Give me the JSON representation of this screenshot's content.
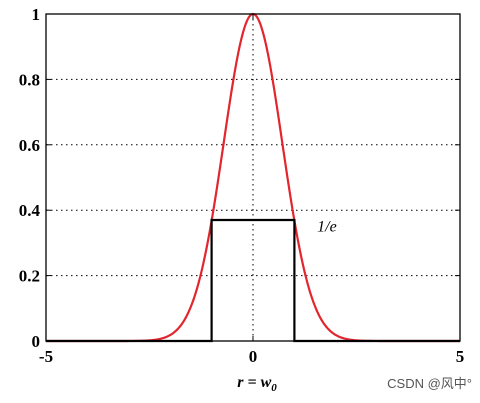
{
  "chart_data": {
    "type": "line",
    "xlim": [
      -5,
      5
    ],
    "ylim": [
      0,
      1
    ],
    "x_ticks": [
      -5,
      0,
      5
    ],
    "y_ticks": [
      0,
      0.2,
      0.4,
      0.6,
      0.8,
      1
    ],
    "x_tick_labels": [
      "-5",
      "0",
      "5"
    ],
    "y_tick_labels": [
      "0",
      "0.2",
      "0.4",
      "0.6",
      "0.8",
      "1"
    ],
    "grid": "dotted",
    "xlabel": "r = w",
    "xlabel_subscript": "0",
    "series": [
      {
        "color": "#e3262e",
        "points": [
          [
            -5,
            0
          ],
          [
            -4,
            0
          ],
          [
            -3,
            0.0001
          ],
          [
            -2.5,
            0.0039
          ],
          [
            -2,
            0.034
          ],
          [
            -1.5,
            0.11
          ],
          [
            -1.25,
            0.21
          ],
          [
            -1,
            0.37
          ],
          [
            -0.75,
            0.57
          ],
          [
            -0.5,
            0.78
          ],
          [
            -0.25,
            0.94
          ],
          [
            0,
            1
          ],
          [
            0.25,
            0.94
          ],
          [
            0.5,
            0.78
          ],
          [
            0.75,
            0.57
          ],
          [
            1,
            0.37
          ],
          [
            1.25,
            0.21
          ],
          [
            1.5,
            0.11
          ],
          [
            2,
            0.034
          ],
          [
            2.5,
            0.0039
          ],
          [
            3,
            0.0001
          ],
          [
            4,
            0
          ],
          [
            5,
            0
          ]
        ]
      },
      {
        "color": "#000000",
        "points": [
          [
            -5,
            0
          ],
          [
            -1,
            0
          ],
          [
            -1,
            0.37
          ],
          [
            1,
            0.37
          ],
          [
            1,
            0
          ],
          [
            5,
            0
          ]
        ]
      }
    ],
    "annotations": [
      {
        "text": "1/e",
        "x": 1.55,
        "y": 0.35
      }
    ]
  },
  "watermark": "CSDN @风中°"
}
